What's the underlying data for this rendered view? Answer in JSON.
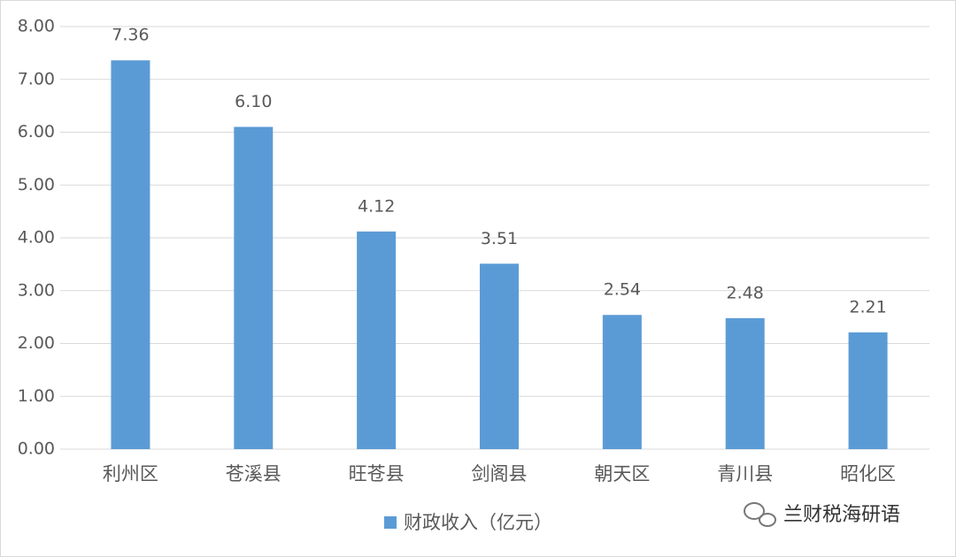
{
  "chart_data": {
    "type": "bar",
    "categories": [
      "利州区",
      "苍溪县",
      "旺苍县",
      "剑阁县",
      "朝天区",
      "青川县",
      "昭化区"
    ],
    "series": [
      {
        "name": "财政收入（亿元）",
        "color": "#5b9bd5",
        "values": [
          7.36,
          6.1,
          4.12,
          3.51,
          2.54,
          2.48,
          2.21
        ],
        "value_labels": [
          "7.36",
          "6.10",
          "4.12",
          "3.51",
          "2.54",
          "2.48",
          "2.21"
        ]
      }
    ],
    "ylim": [
      0,
      8
    ],
    "yticks": [
      {
        "value": 0,
        "label": "0.00"
      },
      {
        "value": 1,
        "label": "1.00"
      },
      {
        "value": 2,
        "label": "2.00"
      },
      {
        "value": 3,
        "label": "3.00"
      },
      {
        "value": 4,
        "label": "4.00"
      },
      {
        "value": 5,
        "label": "5.00"
      },
      {
        "value": 6,
        "label": "6.00"
      },
      {
        "value": 7,
        "label": "7.00"
      },
      {
        "value": 8,
        "label": "8.00"
      }
    ],
    "grid": true,
    "legend": "bottom"
  },
  "watermark": "兰财税海研语"
}
